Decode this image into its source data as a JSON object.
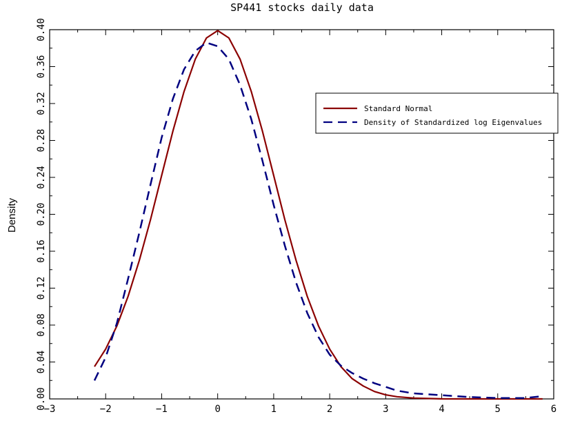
{
  "chart_data": {
    "type": "line",
    "title": "SP441 stocks daily data",
    "xlabel": "",
    "ylabel": "Density",
    "xlim": [
      -3,
      6
    ],
    "ylim": [
      0,
      0.4
    ],
    "x_ticks": [
      "-3",
      "-2",
      "-1",
      "0",
      "1",
      "2",
      "3",
      "4",
      "5",
      "6"
    ],
    "y_ticks": [
      "0.00",
      "0.04",
      "0.08",
      "0.12",
      "0.16",
      "0.20",
      "0.24",
      "0.28",
      "0.32",
      "0.36",
      "0.40"
    ],
    "grid": false,
    "legend_position": "top-right",
    "series": [
      {
        "name": "Standard Normal",
        "color": "#8b0000",
        "style": "solid",
        "points": [
          [
            -2.2,
            0.035
          ],
          [
            -2.0,
            0.054
          ],
          [
            -1.8,
            0.079
          ],
          [
            -1.6,
            0.111
          ],
          [
            -1.4,
            0.15
          ],
          [
            -1.2,
            0.194
          ],
          [
            -1.0,
            0.242
          ],
          [
            -0.8,
            0.29
          ],
          [
            -0.6,
            0.333
          ],
          [
            -0.4,
            0.368
          ],
          [
            -0.2,
            0.391
          ],
          [
            0.0,
            0.399
          ],
          [
            0.2,
            0.391
          ],
          [
            0.4,
            0.368
          ],
          [
            0.6,
            0.333
          ],
          [
            0.8,
            0.29
          ],
          [
            1.0,
            0.242
          ],
          [
            1.2,
            0.194
          ],
          [
            1.4,
            0.15
          ],
          [
            1.6,
            0.111
          ],
          [
            1.8,
            0.079
          ],
          [
            2.0,
            0.054
          ],
          [
            2.2,
            0.035
          ],
          [
            2.4,
            0.022
          ],
          [
            2.6,
            0.014
          ],
          [
            2.8,
            0.008
          ],
          [
            3.0,
            0.0044
          ],
          [
            3.2,
            0.0024
          ],
          [
            3.5,
            0.0009
          ],
          [
            4.0,
            0.0001
          ],
          [
            4.5,
            0.0
          ],
          [
            5.0,
            0.0
          ],
          [
            5.5,
            0.0
          ],
          [
            5.8,
            0.0
          ]
        ]
      },
      {
        "name": "Density of Standardized log Eigenvalues",
        "color": "#000080",
        "style": "dashed",
        "points": [
          [
            -2.2,
            0.02
          ],
          [
            -2.0,
            0.045
          ],
          [
            -1.8,
            0.082
          ],
          [
            -1.6,
            0.13
          ],
          [
            -1.4,
            0.18
          ],
          [
            -1.2,
            0.232
          ],
          [
            -1.0,
            0.283
          ],
          [
            -0.8,
            0.325
          ],
          [
            -0.6,
            0.357
          ],
          [
            -0.4,
            0.377
          ],
          [
            -0.2,
            0.386
          ],
          [
            0.0,
            0.382
          ],
          [
            0.2,
            0.368
          ],
          [
            0.4,
            0.34
          ],
          [
            0.6,
            0.303
          ],
          [
            0.8,
            0.258
          ],
          [
            1.0,
            0.21
          ],
          [
            1.2,
            0.166
          ],
          [
            1.4,
            0.126
          ],
          [
            1.6,
            0.093
          ],
          [
            1.8,
            0.067
          ],
          [
            2.0,
            0.048
          ],
          [
            2.2,
            0.036
          ],
          [
            2.4,
            0.028
          ],
          [
            2.6,
            0.022
          ],
          [
            2.8,
            0.017
          ],
          [
            3.0,
            0.013
          ],
          [
            3.2,
            0.009
          ],
          [
            3.5,
            0.006
          ],
          [
            4.0,
            0.004
          ],
          [
            4.5,
            0.002
          ],
          [
            5.0,
            0.001
          ],
          [
            5.5,
            0.001
          ],
          [
            5.8,
            0.003
          ]
        ]
      }
    ]
  }
}
